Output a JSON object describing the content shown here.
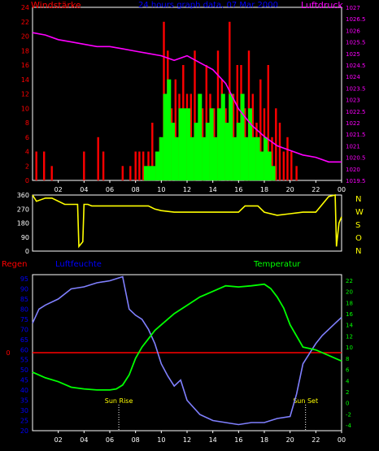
{
  "header": {
    "title": "24 hours graph data, 07 Mar 2000",
    "wind_label": "Windstärke",
    "pressure_label": "Luftdruck"
  },
  "lower": {
    "rain_label": "Regen",
    "humidity_label": "Luftfeuchte",
    "temperature_label": "Temperatur",
    "sunrise_label": "Sun Rise",
    "sunset_label": "Sun Set"
  },
  "compass": [
    "N",
    "W",
    "S",
    "O",
    "N"
  ],
  "colors": {
    "background": "#000000",
    "frame": "#ffffff",
    "wind_gust": "#ff0000",
    "wind_mean": "#00ff00",
    "pressure": "#ff00ff",
    "direction": "#ffff00",
    "humidity": "#8080ff",
    "temperature": "#00ff00",
    "rain": "#ff0000",
    "title": "#0000ff",
    "tick_left": "#ff0000",
    "tick_right": "#ff00ff",
    "tick_temp": "#00ff00",
    "tick_hum": "#0000ff"
  },
  "chart_data": [
    {
      "type": "bar",
      "name": "wind",
      "x_ticks": [
        "02",
        "04",
        "06",
        "08",
        "10",
        "12",
        "14",
        "16",
        "18",
        "20",
        "22",
        "00"
      ],
      "xlim": [
        0,
        24
      ],
      "y_left_ticks": [
        "0",
        "2",
        "4",
        "6",
        "8",
        "10",
        "12",
        "14",
        "16",
        "18",
        "20",
        "22",
        "24"
      ],
      "ylim_left": [
        0,
        24
      ],
      "y_right_ticks": [
        "1019.5",
        "1020",
        "1020.5",
        "1021",
        "1021.5",
        "1022",
        "1022.5",
        "1023",
        "1023.5",
        "1024",
        "1024.5",
        "1025",
        "1025.5",
        "1026",
        "1026.5",
        "1027"
      ],
      "ylim_right": [
        1019.5,
        1027
      ],
      "gust_x": [
        0.3,
        0.9,
        1.5,
        4.0,
        5.1,
        5.5,
        7.0,
        7.6,
        8.0,
        8.3,
        8.6,
        9.0,
        9.3,
        9.6,
        9.9,
        10.2,
        10.5,
        10.8,
        11.1,
        11.4,
        11.7,
        12.0,
        12.3,
        12.6,
        12.9,
        13.2,
        13.5,
        13.8,
        14.1,
        14.4,
        14.7,
        15.0,
        15.3,
        15.6,
        15.9,
        16.2,
        16.5,
        16.8,
        17.1,
        17.4,
        17.7,
        18.0,
        18.3,
        18.6,
        18.9,
        19.2,
        19.5,
        19.8,
        20.1,
        20.5
      ],
      "gust_y": [
        4,
        4,
        2,
        4,
        6,
        4,
        2,
        2,
        4,
        4,
        4,
        4,
        8,
        4,
        6,
        22,
        18,
        10,
        14,
        12,
        16,
        12,
        12,
        18,
        8,
        10,
        16,
        12,
        10,
        18,
        14,
        10,
        22,
        12,
        16,
        16,
        10,
        18,
        12,
        8,
        14,
        10,
        16,
        6,
        10,
        8,
        4,
        6,
        4,
        2
      ],
      "mean_x": [
        8.8,
        9.1,
        9.4,
        9.7,
        10.0,
        10.3,
        10.6,
        10.9,
        11.2,
        11.5,
        11.8,
        12.1,
        12.4,
        12.7,
        13.0,
        13.3,
        13.6,
        13.9,
        14.2,
        14.5,
        14.8,
        15.1,
        15.4,
        15.7,
        16.0,
        16.3,
        16.6,
        16.9,
        17.2,
        17.5,
        17.8,
        18.1,
        18.4,
        18.7
      ],
      "mean_y": [
        2,
        2,
        2,
        4,
        6,
        12,
        14,
        8,
        6,
        10,
        10,
        10,
        6,
        8,
        12,
        6,
        8,
        10,
        6,
        10,
        12,
        8,
        12,
        6,
        8,
        12,
        6,
        10,
        6,
        6,
        4,
        6,
        4,
        2
      ],
      "pressure_x": [
        0,
        1,
        2,
        3,
        4,
        5,
        6,
        7,
        8,
        9,
        10,
        11,
        12,
        13,
        14,
        15,
        16,
        17,
        18,
        19,
        20,
        21,
        22,
        23,
        24
      ],
      "pressure_y": [
        1025.9,
        1025.8,
        1025.6,
        1025.5,
        1025.4,
        1025.3,
        1025.3,
        1025.2,
        1025.1,
        1025.0,
        1024.9,
        1024.7,
        1024.9,
        1024.6,
        1024.3,
        1023.7,
        1022.6,
        1021.9,
        1021.4,
        1021.0,
        1020.8,
        1020.6,
        1020.5,
        1020.3,
        1020.3
      ]
    },
    {
      "type": "line",
      "name": "wind_direction",
      "y_ticks": [
        "0",
        "90",
        "180",
        "270",
        "360"
      ],
      "ylim": [
        0,
        360
      ],
      "x": [
        0,
        0.3,
        1,
        1.5,
        2.5,
        3.0,
        3.5,
        3.6,
        3.9,
        4.0,
        4.3,
        4.6,
        5,
        6,
        7,
        8,
        9,
        9.5,
        10,
        11,
        12,
        13,
        14,
        15,
        16,
        16.5,
        17,
        17.5,
        18,
        19,
        20,
        21,
        21.5,
        22,
        23,
        23.5,
        23.6,
        23.8,
        24
      ],
      "y": [
        360,
        320,
        340,
        340,
        300,
        300,
        300,
        30,
        60,
        300,
        300,
        290,
        290,
        290,
        290,
        290,
        290,
        270,
        260,
        250,
        250,
        250,
        250,
        250,
        250,
        290,
        290,
        290,
        250,
        230,
        240,
        250,
        250,
        250,
        350,
        360,
        30,
        180,
        220
      ]
    },
    {
      "type": "line",
      "name": "humidity_temperature_rain",
      "y_hum_ticks": [
        "20",
        "25",
        "30",
        "35",
        "40",
        "45",
        "50",
        "55",
        "60",
        "65",
        "70",
        "75",
        "80",
        "85",
        "90",
        "95"
      ],
      "ylim_hum": [
        20,
        97
      ],
      "y_temp_ticks": [
        "-4",
        "-2",
        "0",
        "2",
        "4",
        "6",
        "8",
        "10",
        "12",
        "14",
        "16",
        "18",
        "20",
        "22"
      ],
      "ylim_temp": [
        -5,
        23
      ],
      "rain_tick": "0",
      "rain_value": 0,
      "sunrise_x": 6.7,
      "sunset_x": 21.2,
      "humidity_x": [
        0,
        0.5,
        1,
        2,
        3,
        4,
        5,
        6,
        7,
        7.5,
        8,
        8.5,
        9,
        9.5,
        10,
        10.5,
        11,
        11.5,
        12,
        13,
        14,
        15,
        16,
        17,
        18,
        19,
        20,
        20.5,
        21,
        21.5,
        22,
        22.5,
        23,
        23.5,
        24
      ],
      "humidity_y": [
        73,
        80,
        82,
        85,
        90,
        91,
        93,
        94,
        96,
        80,
        77,
        75,
        70,
        63,
        53,
        47,
        42,
        45,
        35,
        28,
        25,
        24,
        23,
        24,
        24,
        26,
        27,
        38,
        53,
        58,
        63,
        67,
        70,
        73,
        76
      ],
      "temperature_x": [
        0,
        1,
        2,
        3,
        4,
        5,
        6,
        6.5,
        7,
        7.5,
        8,
        8.5,
        9,
        9.5,
        10,
        11,
        12,
        13,
        14,
        15,
        16,
        17,
        18,
        18.5,
        19,
        19.5,
        20,
        21,
        22,
        23,
        24
      ],
      "temperature_y": [
        5.5,
        4.5,
        3.8,
        2.8,
        2.5,
        2.3,
        2.3,
        2.5,
        3.2,
        5,
        8,
        10,
        11.5,
        13,
        14,
        16,
        17.5,
        19,
        20,
        21,
        20.8,
        21,
        21.3,
        20.5,
        19,
        17,
        14,
        10,
        9.5,
        8.5,
        7.5
      ]
    }
  ]
}
